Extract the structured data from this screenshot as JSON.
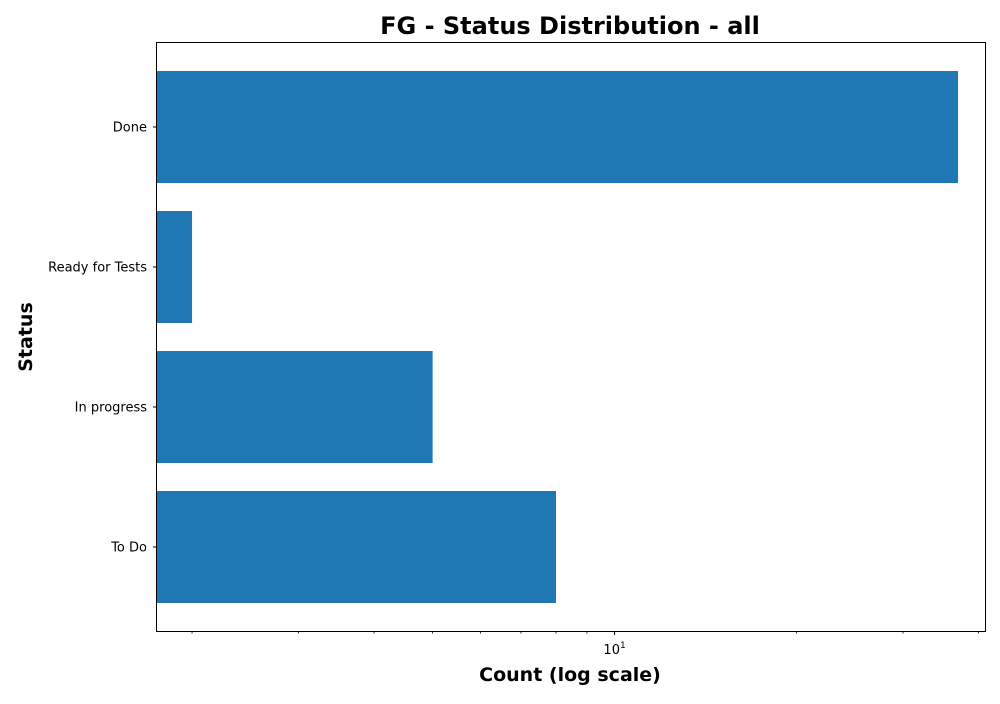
{
  "chart_data": {
    "type": "bar",
    "orientation": "horizontal",
    "title": "FG - Status Distribution - all",
    "xlabel": "Count (log scale)",
    "ylabel": "Status",
    "x_scale": "log",
    "xlim": [
      1.75,
      41
    ],
    "categories": [
      "Done",
      "Ready for Tests",
      "In progress",
      "To Do"
    ],
    "values": [
      37,
      2,
      5,
      8
    ],
    "x_tick_labels": [
      {
        "value": 10,
        "base": "10",
        "exponent": "1"
      }
    ],
    "bar_color": "#1f77b4",
    "grid": false,
    "legend": "none"
  }
}
